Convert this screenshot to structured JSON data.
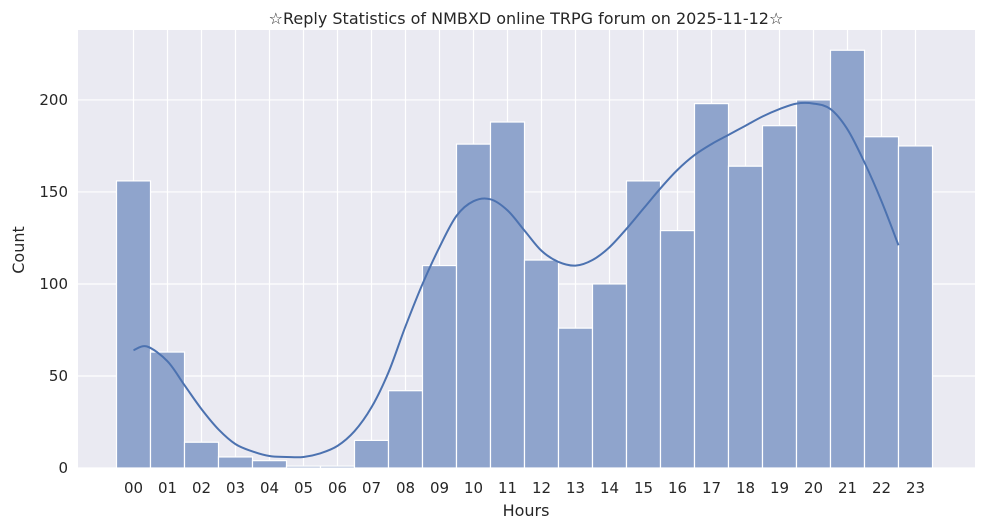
{
  "chart_data": {
    "type": "bar",
    "title": "☆Reply Statistics of NMBXD online TRPG forum on 2025-11-12☆",
    "xlabel": "Hours",
    "ylabel": "Count",
    "categories": [
      "00",
      "01",
      "02",
      "03",
      "04",
      "05",
      "06",
      "07",
      "08",
      "09",
      "10",
      "11",
      "12",
      "13",
      "14",
      "15",
      "16",
      "17",
      "18",
      "19",
      "20",
      "21",
      "22",
      "23"
    ],
    "values": [
      156,
      63,
      14,
      6,
      4,
      1,
      1,
      15,
      42,
      110,
      176,
      188,
      113,
      76,
      100,
      156,
      129,
      198,
      164,
      186,
      200,
      227,
      180,
      175
    ],
    "ylim": [
      0,
      238
    ],
    "yticks": [
      0,
      50,
      100,
      150,
      200
    ],
    "kde": [
      {
        "x": 0,
        "y": 64
      },
      {
        "x": 0.4,
        "y": 66
      },
      {
        "x": 1,
        "y": 58
      },
      {
        "x": 1.5,
        "y": 45
      },
      {
        "x": 2,
        "y": 32
      },
      {
        "x": 2.5,
        "y": 21
      },
      {
        "x": 3,
        "y": 13
      },
      {
        "x": 3.5,
        "y": 9
      },
      {
        "x": 4,
        "y": 6.5
      },
      {
        "x": 4.5,
        "y": 6
      },
      {
        "x": 5,
        "y": 6
      },
      {
        "x": 5.5,
        "y": 8
      },
      {
        "x": 6,
        "y": 12
      },
      {
        "x": 6.5,
        "y": 20
      },
      {
        "x": 7,
        "y": 33
      },
      {
        "x": 7.5,
        "y": 52
      },
      {
        "x": 8,
        "y": 77
      },
      {
        "x": 8.5,
        "y": 100
      },
      {
        "x": 9,
        "y": 120
      },
      {
        "x": 9.5,
        "y": 137
      },
      {
        "x": 10,
        "y": 145
      },
      {
        "x": 10.5,
        "y": 146
      },
      {
        "x": 11,
        "y": 140
      },
      {
        "x": 11.5,
        "y": 129
      },
      {
        "x": 12,
        "y": 118
      },
      {
        "x": 12.5,
        "y": 112
      },
      {
        "x": 13,
        "y": 110
      },
      {
        "x": 13.5,
        "y": 113
      },
      {
        "x": 14,
        "y": 120
      },
      {
        "x": 14.5,
        "y": 130
      },
      {
        "x": 15,
        "y": 141
      },
      {
        "x": 15.5,
        "y": 152
      },
      {
        "x": 16,
        "y": 162
      },
      {
        "x": 16.5,
        "y": 170
      },
      {
        "x": 17,
        "y": 176
      },
      {
        "x": 17.5,
        "y": 181
      },
      {
        "x": 18,
        "y": 186
      },
      {
        "x": 18.5,
        "y": 191
      },
      {
        "x": 19,
        "y": 195
      },
      {
        "x": 19.5,
        "y": 198
      },
      {
        "x": 20,
        "y": 198
      },
      {
        "x": 20.5,
        "y": 195
      },
      {
        "x": 21,
        "y": 184
      },
      {
        "x": 21.5,
        "y": 166
      },
      {
        "x": 22,
        "y": 145
      },
      {
        "x": 22.5,
        "y": 121
      }
    ],
    "colors": {
      "bar_fill": "#8fa4cc",
      "bar_edge": "#ffffff",
      "kde_line": "#4c72b0",
      "plot_background": "#eaeaf2",
      "grid": "#ffffff"
    },
    "grid": true,
    "legend": "none"
  }
}
